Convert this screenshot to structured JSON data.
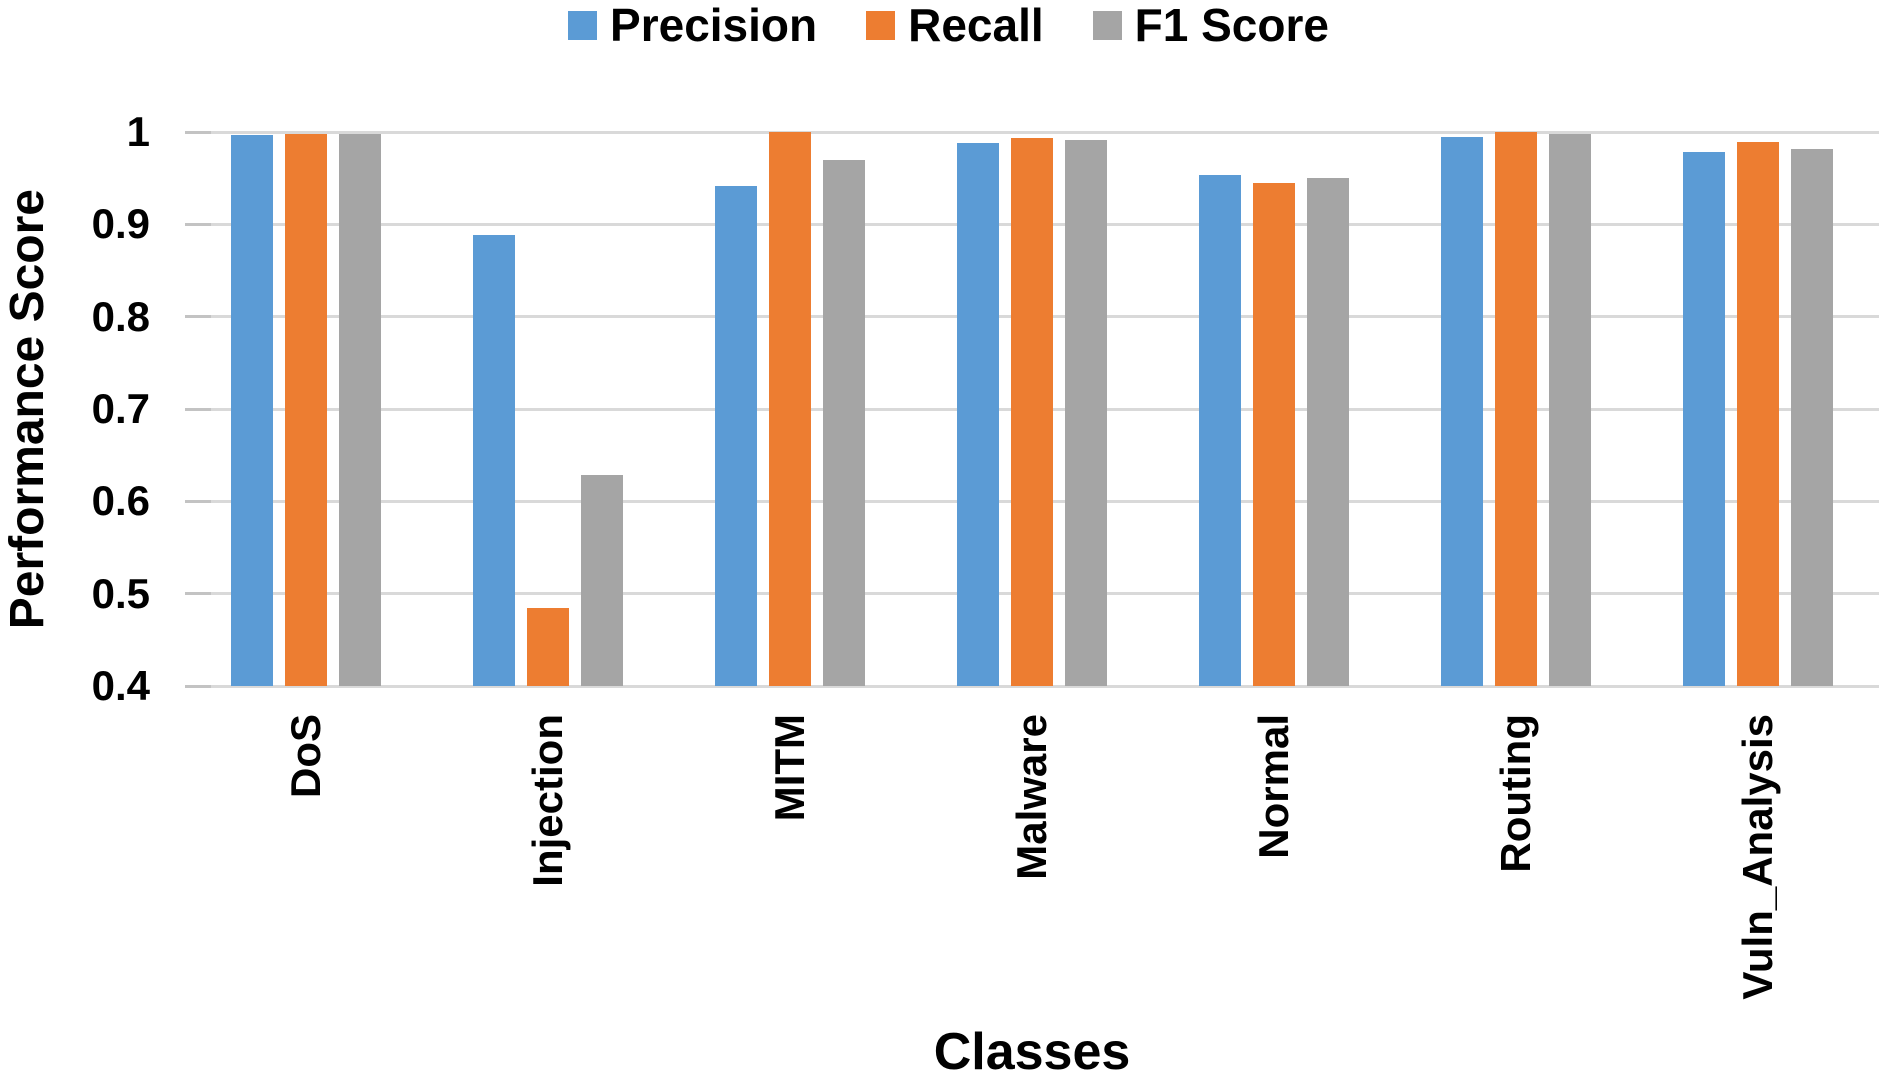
{
  "chart_data": {
    "type": "bar",
    "title": "",
    "xlabel": "Classes",
    "ylabel": "Performance Score",
    "categories": [
      "DoS",
      "Injection",
      "MITM",
      "Malware",
      "Normal",
      "Routing",
      "Vuln_Analysis"
    ],
    "series": [
      {
        "name": "Precision",
        "color": "#5B9BD5",
        "values": [
          0.997,
          0.888,
          0.941,
          0.988,
          0.953,
          0.995,
          0.978
        ]
      },
      {
        "name": "Recall",
        "color": "#ED7D31",
        "values": [
          0.998,
          0.485,
          1.0,
          0.994,
          0.945,
          1.0,
          0.989
        ]
      },
      {
        "name": "F1 Score",
        "color": "#A5A5A5",
        "values": [
          0.998,
          0.628,
          0.97,
          0.991,
          0.95,
          0.998,
          0.982
        ]
      }
    ],
    "ylim": [
      0.4,
      1.0
    ],
    "yticks": [
      1,
      0.9,
      0.8,
      0.7,
      0.6,
      0.5,
      0.4
    ],
    "ytick_labels": [
      "1",
      "0.9",
      "0.8",
      "0.7",
      "0.6",
      "0.5",
      "0.4"
    ],
    "grid": true,
    "gridline_color": "#d9d9d9",
    "legend_position": "top"
  }
}
